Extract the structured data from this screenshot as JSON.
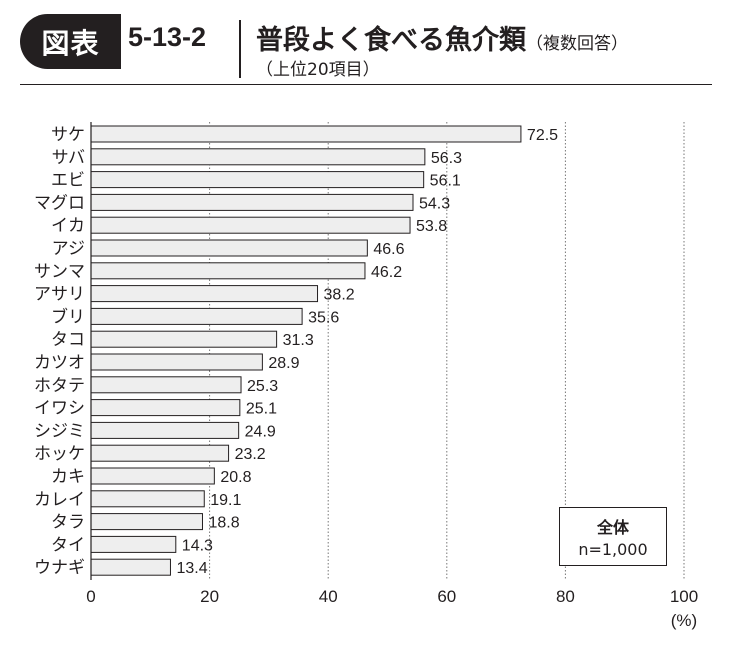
{
  "header": {
    "badge": "図表",
    "figure_number": "5-13-2",
    "title": "普段よく食べる魚介類",
    "title_note": "（複数回答）",
    "subtitle": "（上位20項目）"
  },
  "legend": {
    "group": "全体",
    "sample": "n=1,000"
  },
  "colors": {
    "bar_fill": "#eeeeee",
    "bar_stroke": "#231f20",
    "text": "#231f20",
    "badge_bg": "#231f20"
  },
  "chart_data": {
    "type": "bar",
    "orientation": "horizontal",
    "title": "普段よく食べる魚介類",
    "categories": [
      "サケ",
      "サバ",
      "エビ",
      "マグロ",
      "イカ",
      "アジ",
      "サンマ",
      "アサリ",
      "ブリ",
      "タコ",
      "カツオ",
      "ホタテ",
      "イワシ",
      "シジミ",
      "ホッケ",
      "カキ",
      "カレイ",
      "タラ",
      "タイ",
      "ウナギ"
    ],
    "values": [
      72.5,
      56.3,
      56.1,
      54.3,
      53.8,
      46.6,
      46.2,
      38.2,
      35.6,
      31.3,
      28.9,
      25.3,
      25.1,
      24.9,
      23.2,
      20.8,
      19.1,
      18.8,
      14.3,
      13.4
    ],
    "x_ticks": [
      0,
      20,
      40,
      60,
      80,
      100
    ],
    "xlim": [
      0,
      100
    ],
    "xlabel": "(%)",
    "grid": "vertical dotted",
    "legend_position": "bottom-right"
  }
}
